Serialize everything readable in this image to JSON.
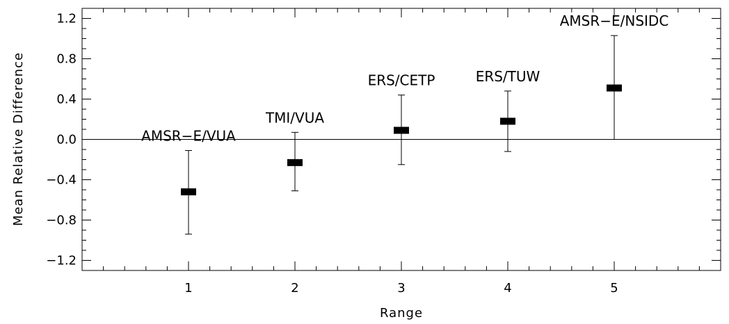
{
  "chart_data": {
    "type": "scatter",
    "subtype": "errorbar",
    "title": "",
    "xlabel": "Range",
    "ylabel": "Mean Relative Difference",
    "xlim": [
      0,
      6
    ],
    "ylim": [
      -1.3,
      1.3
    ],
    "x_ticks": [
      "1",
      "2",
      "3",
      "4",
      "5"
    ],
    "y_ticks": [
      "1.2",
      "0.8",
      "0.4",
      "0.0",
      "−0.4",
      "−0.8",
      "−1.2"
    ],
    "zero_line": true,
    "grid": false,
    "points": [
      {
        "x": 1,
        "y": -0.52,
        "low": -0.94,
        "high": -0.11,
        "label": "AMSR−E/VUA"
      },
      {
        "x": 2,
        "y": -0.23,
        "low": -0.51,
        "high": 0.07,
        "label": "TMI/VUA"
      },
      {
        "x": 3,
        "y": 0.09,
        "low": -0.25,
        "high": 0.44,
        "label": "ERS/CETP"
      },
      {
        "x": 4,
        "y": 0.18,
        "low": -0.12,
        "high": 0.48,
        "label": "ERS/TUW"
      },
      {
        "x": 5,
        "y": 0.51,
        "low": 0.0,
        "high": 1.03,
        "label": "AMSR−E/NSIDC"
      }
    ]
  }
}
